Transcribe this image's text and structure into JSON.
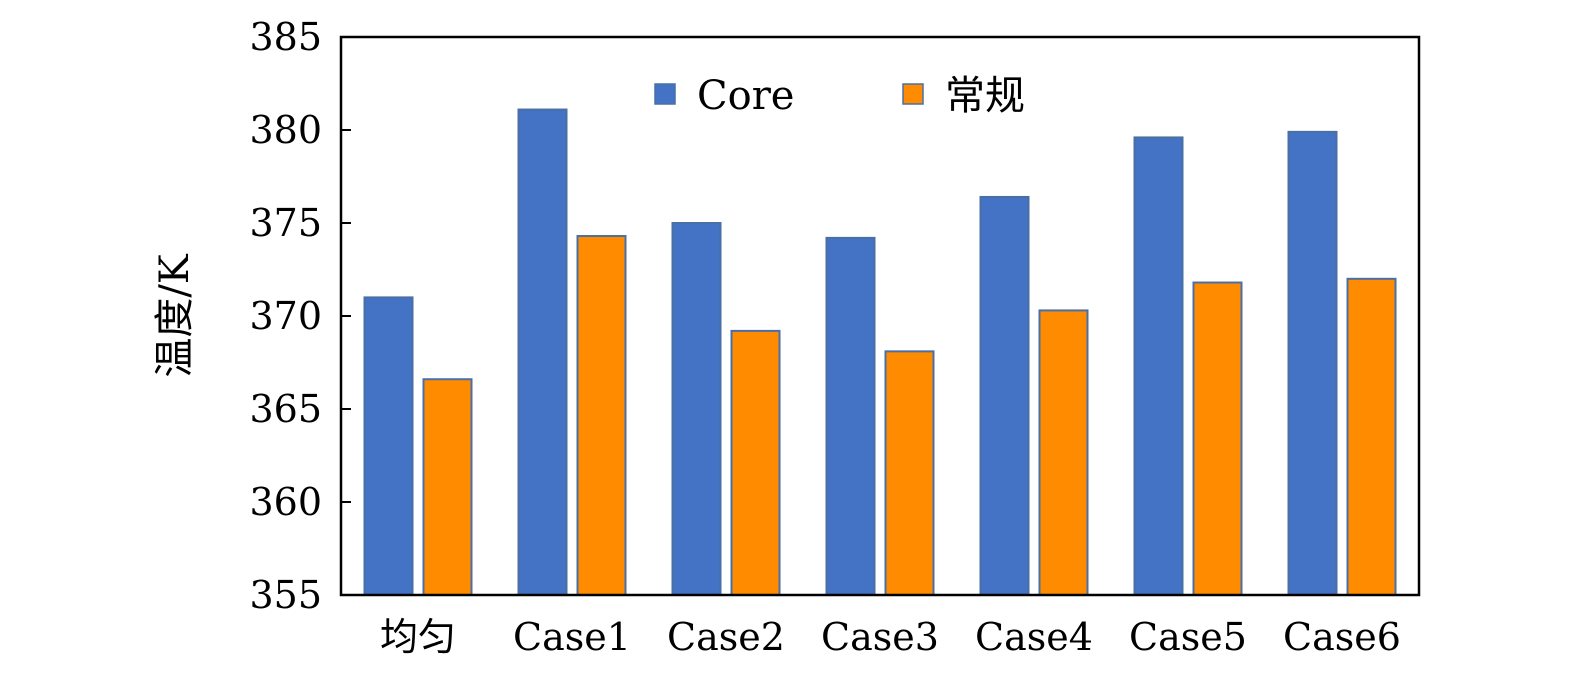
{
  "chart_data": {
    "type": "bar",
    "categories": [
      "均匀",
      "Case1",
      "Case2",
      "Case3",
      "Case4",
      "Case5",
      "Case6"
    ],
    "series": [
      {
        "name": "Core",
        "color": "#4472C4",
        "values": [
          371.0,
          381.1,
          375.0,
          374.2,
          376.4,
          379.6,
          379.9
        ]
      },
      {
        "name": "常规",
        "color": "#FF8C00",
        "values": [
          366.6,
          374.3,
          369.2,
          368.1,
          370.3,
          371.8,
          372.0
        ]
      }
    ],
    "title": "",
    "xlabel": "",
    "ylabel": "温度/K",
    "ylim": [
      355,
      385
    ],
    "yticks": [
      355,
      360,
      365,
      370,
      375,
      380,
      385
    ],
    "grid": false,
    "legend_position": "top-center"
  }
}
